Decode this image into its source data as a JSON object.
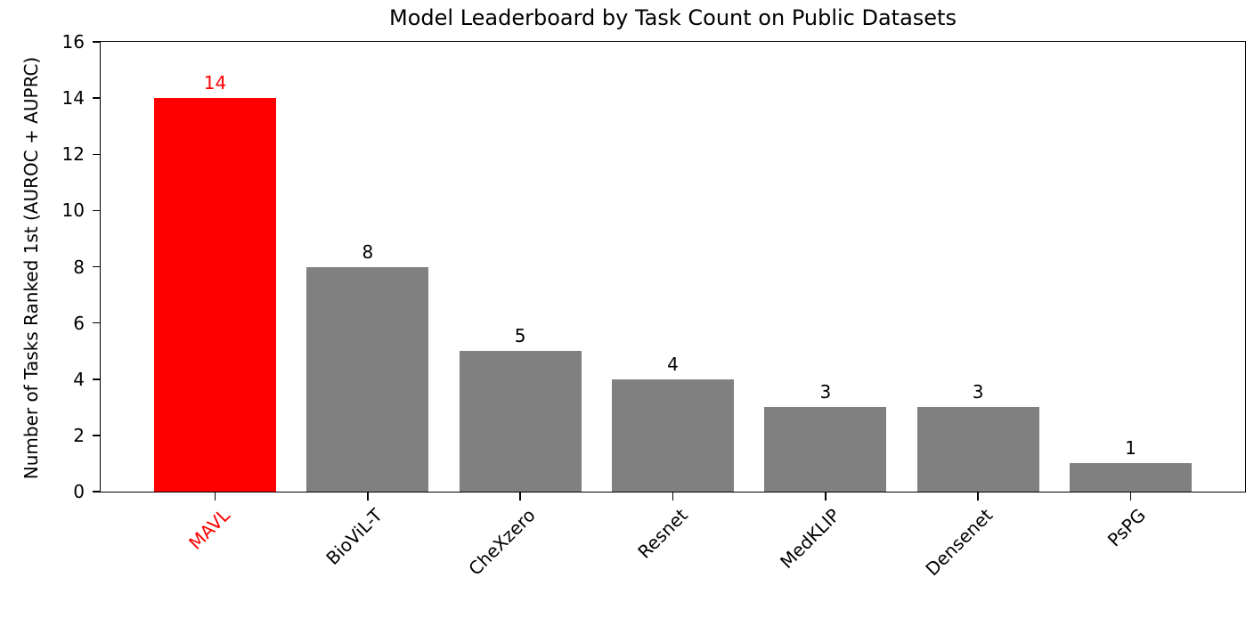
{
  "chart_data": {
    "type": "bar",
    "title": "Model Leaderboard by Task Count on Public Datasets",
    "xlabel": "",
    "ylabel": "Number of Tasks Ranked 1st (AUROC + AUPRC)",
    "categories": [
      "MAVL",
      "BioViL-T",
      "CheXzero",
      "Resnet",
      "MedKLIP",
      "Densenet",
      "PsPG"
    ],
    "values": [
      14,
      8,
      5,
      4,
      3,
      3,
      1
    ],
    "bar_colors": [
      "#ff0000",
      "#808080",
      "#808080",
      "#808080",
      "#808080",
      "#808080",
      "#808080"
    ],
    "value_label_colors": [
      "#ff0000",
      "#000000",
      "#000000",
      "#000000",
      "#000000",
      "#000000",
      "#000000"
    ],
    "x_tick_label_colors": [
      "#ff0000",
      "#000000",
      "#000000",
      "#000000",
      "#000000",
      "#000000",
      "#000000"
    ],
    "highlighted_category": "MAVL",
    "highlight_color": "#ff0000",
    "default_bar_color": "#808080",
    "yticks": [
      0,
      2,
      4,
      6,
      8,
      10,
      12,
      14,
      16
    ],
    "ylim": [
      0,
      16
    ],
    "x_tick_rotation_deg": 45,
    "grid": false,
    "legend": null
  }
}
